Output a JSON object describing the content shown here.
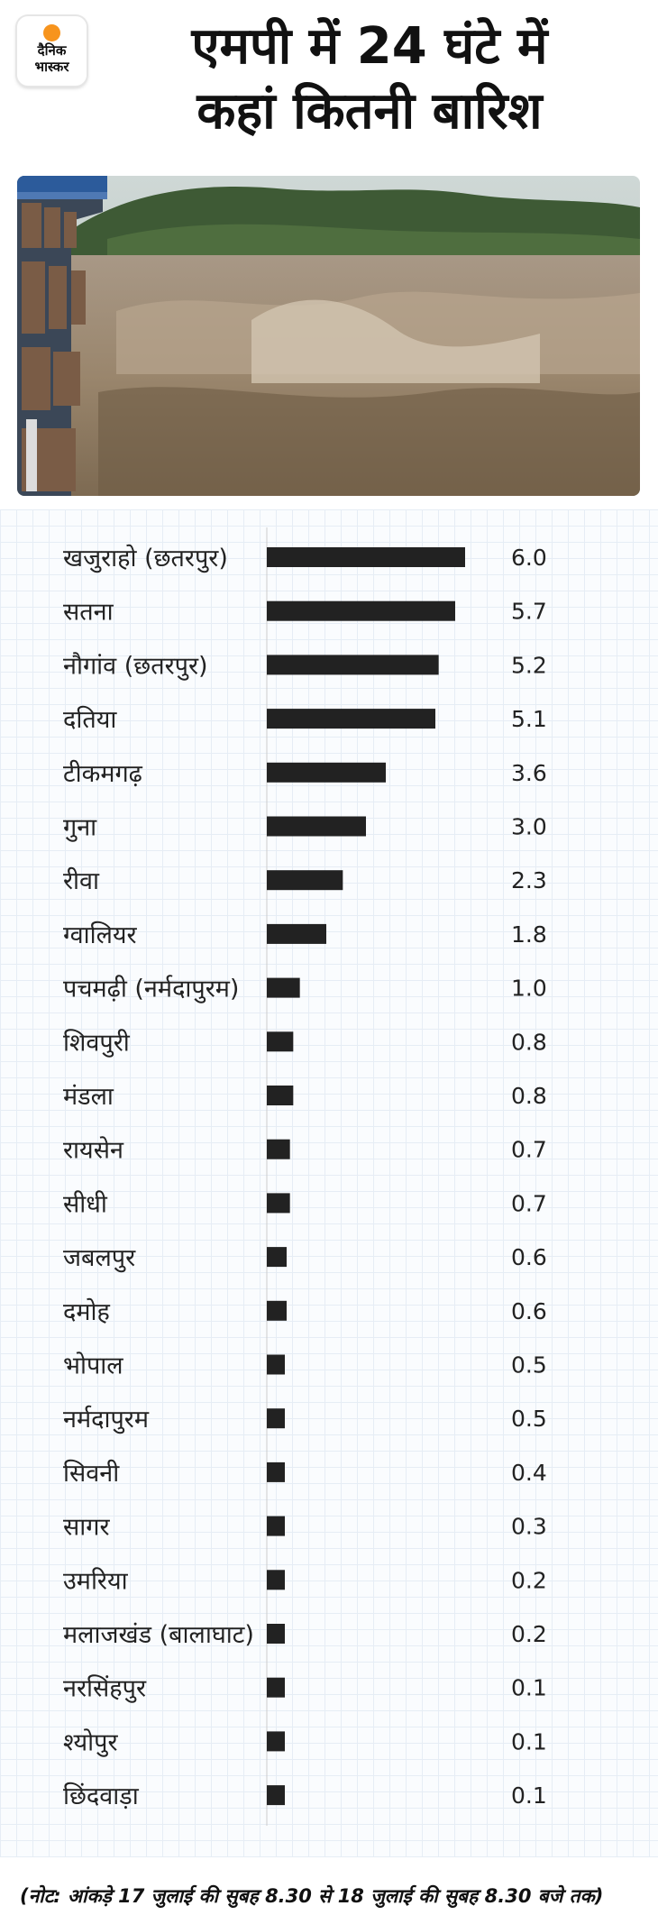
{
  "logo": {
    "line1": "दैनिक",
    "line2": "भास्कर"
  },
  "title": {
    "line1": "एमपी में 24 घंटे में",
    "line2": "कहां कितनी बारिश"
  },
  "colors": {
    "bar": "#222222",
    "accent": "#f7941d",
    "grid": "#e6edf5",
    "text": "#222222"
  },
  "chart_data": {
    "type": "bar",
    "orientation": "horizontal",
    "categories": [
      "खजुराहो (छतरपुर)",
      "सतना",
      "नौगांव (छतरपुर)",
      "दतिया",
      "टीकमगढ़",
      "गुना",
      "रीवा",
      "ग्वालियर",
      "पचमढ़ी (नर्मदापुरम)",
      "शिवपुरी",
      "मंडला",
      "रायसेन",
      "सीधी",
      "जबलपुर",
      "दमोह",
      "भोपाल",
      "नर्मदापुरम",
      "सिवनी",
      "सागर",
      "उमरिया",
      "मलाजखंड (बालाघाट)",
      "नरसिंहपुर",
      "श्योपुर",
      "छिंदवाड़ा"
    ],
    "values": [
      6.0,
      5.7,
      5.2,
      5.1,
      3.6,
      3.0,
      2.3,
      1.8,
      1.0,
      0.8,
      0.8,
      0.7,
      0.7,
      0.6,
      0.6,
      0.5,
      0.5,
      0.4,
      0.3,
      0.2,
      0.2,
      0.1,
      0.1,
      0.1
    ],
    "value_labels": [
      "6.0",
      "5.7",
      "5.2",
      "5.1",
      "3.6",
      "3.0",
      "2.3",
      "1.8",
      "1.0",
      "0.8",
      "0.8",
      "0.7",
      "0.7",
      "0.6",
      "0.6",
      "0.5",
      "0.5",
      "0.4",
      "0.3",
      "0.2",
      "0.2",
      "0.1",
      "0.1",
      "0.1"
    ],
    "xlim": [
      0,
      6.0
    ],
    "title": "",
    "xlabel": "",
    "ylabel": "",
    "grid": true,
    "legend": "none"
  },
  "note": "(नोट: आंकड़े 17 जुलाई की सुबह 8.30 से 18 जुलाई की सुबह 8.30 बजे तक)"
}
